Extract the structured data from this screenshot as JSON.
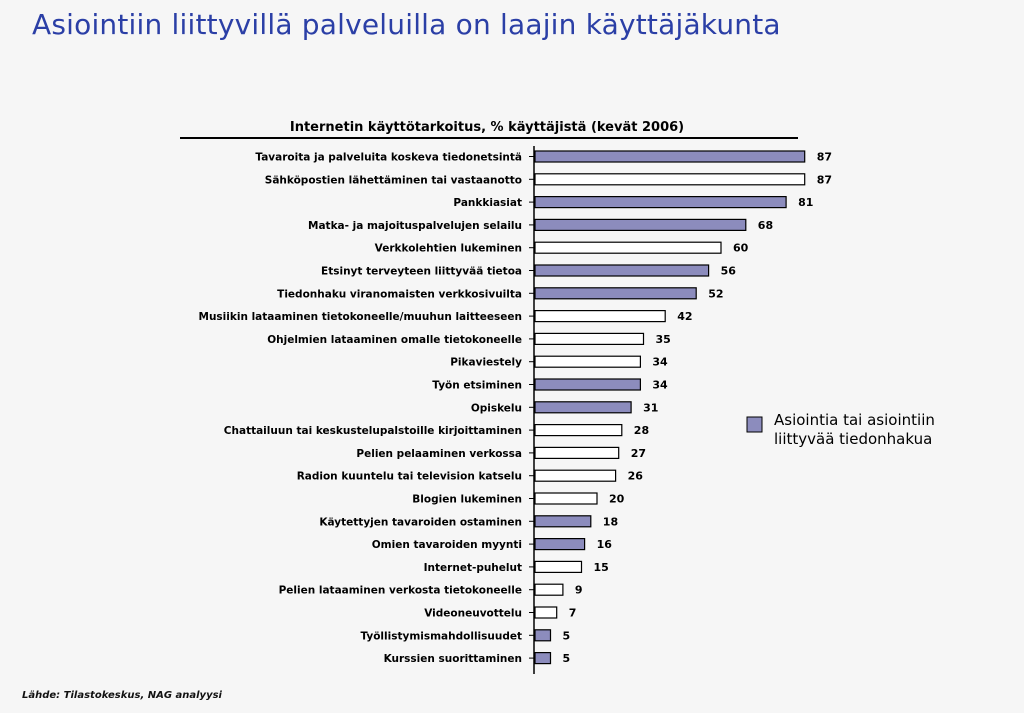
{
  "page": {
    "title": "Asiointiin liittyvillä palveluilla on laajin käyttäjäkunta",
    "source": "Lähde: Tilastokeskus, NAG analyysi"
  },
  "chart_data": {
    "type": "bar",
    "orientation": "horizontal",
    "title": "Internetin käyttötarkoitus, % käyttäjistä (kevät 2006)",
    "xlabel": "",
    "ylabel": "",
    "xlim": [
      0,
      100
    ],
    "grid": false,
    "legend_position": "right",
    "categories": [
      "Tavaroita ja palveluita koskeva tiedonetsintä",
      "Sähköpostien lähettäminen tai vastaanotto",
      "Pankkiasiat",
      "Matka- ja majoituspalvelujen selailu",
      "Verkkolehtien lukeminen",
      "Etsinyt terveyteen liittyvää tietoa",
      "Tiedonhaku viranomaisten verkkosivuilta",
      "Musiikin lataaminen tietokoneelle/muuhun laitteeseen",
      "Ohjelmien lataaminen omalle tietokoneelle",
      "Pikaviestely",
      "Työn etsiminen",
      "Opiskelu",
      "Chattailuun tai keskustelupalstoille kirjoittaminen",
      "Pelien pelaaminen verkossa",
      "Radion kuuntelu tai television katselu",
      "Blogien lukeminen",
      "Käytettyjen tavaroiden ostaminen",
      "Omien tavaroiden myynti",
      "Internet-puhelut",
      "Pelien lataaminen verkosta tietokoneelle",
      "Videoneuvottelu",
      "Työllistymismahdollisuudet",
      "Kurssien suorittaminen"
    ],
    "values": [
      87,
      87,
      81,
      68,
      60,
      56,
      52,
      42,
      35,
      34,
      34,
      31,
      28,
      27,
      26,
      20,
      18,
      16,
      15,
      9,
      7,
      5,
      5
    ],
    "asiointi": [
      true,
      false,
      true,
      true,
      false,
      true,
      true,
      false,
      false,
      false,
      true,
      true,
      false,
      false,
      false,
      false,
      true,
      true,
      false,
      false,
      false,
      true,
      true
    ],
    "legend": {
      "label": "Asiointia tai asiointiin liittyvää tiedonhakua"
    },
    "colors": {
      "asiointi": "#8c8cbd",
      "other": "#ffffff",
      "stroke": "#000000"
    }
  }
}
